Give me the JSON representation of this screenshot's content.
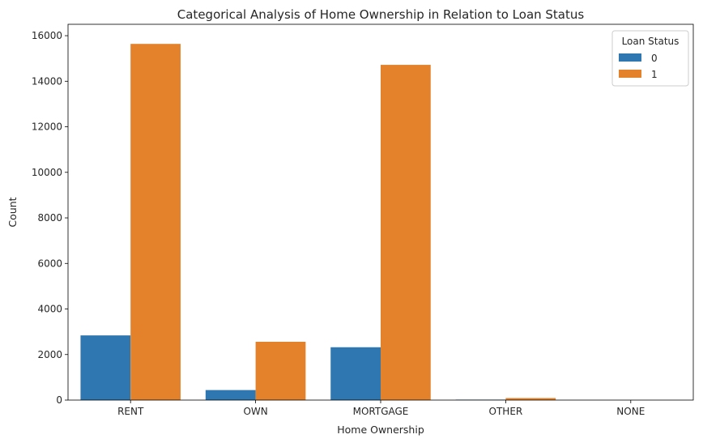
{
  "chart_data": {
    "type": "bar",
    "title": "Categorical Analysis of Home Ownership in Relation to Loan Status",
    "xlabel": "Home Ownership",
    "ylabel": "Count",
    "categories": [
      "RENT",
      "OWN",
      "MORTGAGE",
      "OTHER",
      "NONE"
    ],
    "ylim": [
      0,
      16500
    ],
    "yticks": [
      0,
      2000,
      4000,
      6000,
      8000,
      10000,
      12000,
      14000,
      16000
    ],
    "grid": false,
    "legend": {
      "title": "Loan Status",
      "placement": "top-right"
    },
    "series": [
      {
        "name": "0",
        "color": "#2e77b0",
        "values": [
          2840,
          440,
          2320,
          20,
          0
        ]
      },
      {
        "name": "1",
        "color": "#e3822b",
        "values": [
          15640,
          2560,
          14720,
          90,
          2
        ]
      }
    ]
  }
}
